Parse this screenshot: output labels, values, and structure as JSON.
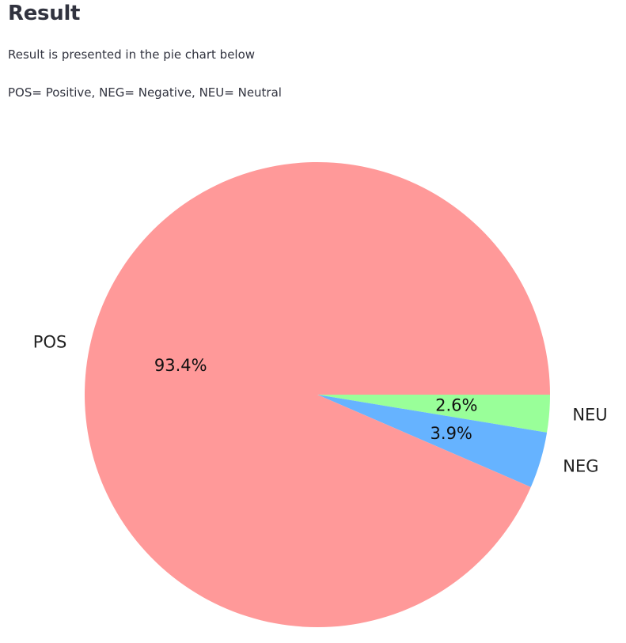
{
  "header": {
    "title": "Result"
  },
  "content": {
    "description": "Result is presented in the pie chart below",
    "legend_text": "POS= Positive, NEG= Negative, NEU= Neutral"
  },
  "chart_data": {
    "type": "pie",
    "categories": [
      "POS",
      "NEG",
      "NEU"
    ],
    "values": [
      93.4,
      3.9,
      2.6
    ],
    "labels": [
      "93.4%",
      "3.9%",
      "2.6%"
    ],
    "colors": [
      "#ff9999",
      "#66b3ff",
      "#99ff99"
    ],
    "title": "",
    "legend": "none"
  }
}
